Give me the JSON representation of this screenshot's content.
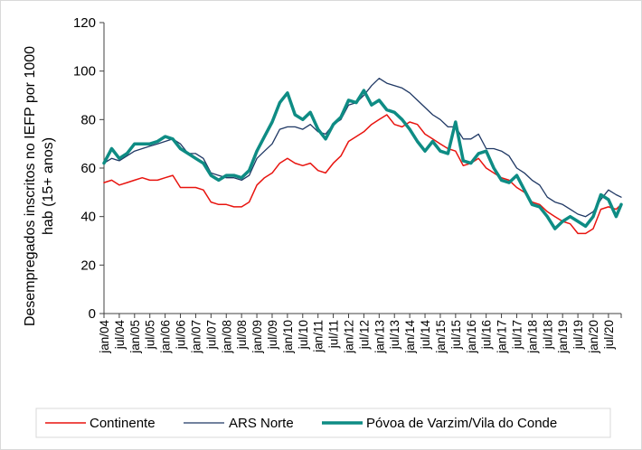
{
  "chart_data": {
    "type": "line",
    "ylabel": "Desempregados inscritos no IEFP por 1000 hab (15+ anos)",
    "ylim": [
      0,
      120
    ],
    "yticks": [
      0,
      20,
      40,
      60,
      80,
      100,
      120
    ],
    "grid": false,
    "legend": "bottom",
    "x_start": "jan/04",
    "x_end": "dez/20",
    "xtick_labels": [
      "jan/04",
      "jul/04",
      "jan/05",
      "jul/05",
      "jan/06",
      "jul/06",
      "jan/07",
      "jul/07",
      "jan/08",
      "jul/08",
      "jan/09",
      "jul/09",
      "jan/10",
      "jul/10",
      "jan/11",
      "jul/11",
      "jan/12",
      "jul/12",
      "jan/13",
      "jul/13",
      "jan/14",
      "jul/14",
      "jan/15",
      "jul/15",
      "jan/16",
      "jul/16",
      "jan/17",
      "jul/17",
      "jan/18",
      "jul/18",
      "jan/19",
      "jul/19",
      "jan/20",
      "jul/20"
    ],
    "anchor_months": [
      "jan/04",
      "apr/04",
      "jul/04",
      "oct/04",
      "jan/05",
      "apr/05",
      "jul/05",
      "oct/05",
      "jan/06",
      "apr/06",
      "jul/06",
      "oct/06",
      "jan/07",
      "apr/07",
      "jul/07",
      "oct/07",
      "jan/08",
      "apr/08",
      "jul/08",
      "oct/08",
      "jan/09",
      "apr/09",
      "jul/09",
      "oct/09",
      "jan/10",
      "apr/10",
      "jul/10",
      "oct/10",
      "jan/11",
      "apr/11",
      "jul/11",
      "oct/11",
      "jan/12",
      "apr/12",
      "jul/12",
      "oct/12",
      "jan/13",
      "apr/13",
      "jul/13",
      "oct/13",
      "jan/14",
      "apr/14",
      "jul/14",
      "oct/14",
      "jan/15",
      "apr/15",
      "jul/15",
      "oct/15",
      "jan/16",
      "apr/16",
      "jul/16",
      "oct/16",
      "jan/17",
      "apr/17",
      "jul/17",
      "oct/17",
      "jan/18",
      "apr/18",
      "jul/18",
      "oct/18",
      "jan/19",
      "apr/19",
      "jul/19",
      "oct/19",
      "jan/20",
      "apr/20",
      "jul/20",
      "oct/20",
      "dez/20"
    ],
    "series": [
      {
        "name": "Continente",
        "color": "#e8140f",
        "values": [
          54,
          55,
          53,
          54,
          55,
          56,
          55,
          55,
          56,
          57,
          52,
          52,
          52,
          51,
          46,
          45,
          45,
          44,
          44,
          46,
          53,
          56,
          58,
          62,
          64,
          62,
          61,
          62,
          59,
          58,
          62,
          65,
          71,
          73,
          75,
          78,
          80,
          82,
          78,
          77,
          79,
          78,
          74,
          72,
          70,
          68,
          67,
          61,
          62,
          64,
          60,
          58,
          56,
          55,
          52,
          50,
          46,
          45,
          42,
          40,
          38,
          37,
          33,
          33,
          35,
          43,
          44,
          43,
          45
        ]
      },
      {
        "name": "ARS Norte",
        "color": "#1f3864",
        "values": [
          62,
          64,
          63,
          65,
          67,
          68,
          69,
          70,
          71,
          72,
          70,
          66,
          66,
          64,
          58,
          57,
          56,
          56,
          55,
          57,
          64,
          67,
          70,
          76,
          77,
          77,
          76,
          78,
          75,
          74,
          78,
          80,
          86,
          87,
          90,
          94,
          97,
          95,
          94,
          93,
          91,
          88,
          85,
          82,
          80,
          77,
          77,
          72,
          72,
          74,
          68,
          68,
          67,
          65,
          60,
          58,
          55,
          53,
          48,
          46,
          45,
          43,
          41,
          40,
          42,
          47,
          51,
          49,
          48
        ]
      },
      {
        "name": "Póvoa de Varzim/Vila do Conde",
        "color": "#0e8c84",
        "values": [
          62,
          68,
          64,
          66,
          70,
          70,
          70,
          71,
          73,
          72,
          68,
          66,
          64,
          62,
          57,
          55,
          57,
          57,
          56,
          59,
          67,
          73,
          79,
          87,
          91,
          82,
          80,
          83,
          76,
          72,
          78,
          81,
          88,
          87,
          92,
          86,
          88,
          84,
          83,
          80,
          76,
          71,
          67,
          71,
          67,
          66,
          79,
          63,
          62,
          66,
          67,
          60,
          55,
          54,
          57,
          51,
          45,
          44,
          40,
          35,
          38,
          40,
          38,
          36,
          40,
          49,
          47,
          40,
          45
        ]
      }
    ]
  }
}
